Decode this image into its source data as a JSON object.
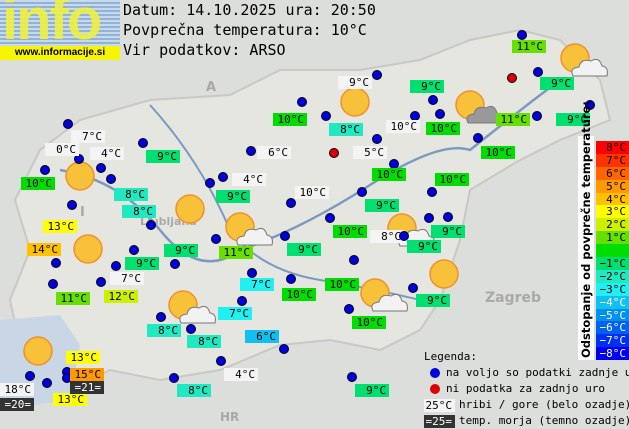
{
  "header": {
    "logo_text": "info",
    "logo_url": "www.informacije.si",
    "date_line": "Datum: 14.10.2025 ura: 20:50",
    "avg_line": "Povprečna temperatura: 10°C",
    "source_line": "Vir podatkov: ARSO"
  },
  "average_temperature": 10,
  "stations": [
    {
      "temp": "11°C",
      "status": "available"
    },
    {
      "temp": "9°C",
      "type": "mountain",
      "status": "available"
    },
    {
      "temp": "9°C",
      "status": "available"
    },
    {
      "temp": "9°C",
      "status": "available"
    },
    {
      "temp": "10°C",
      "status": "available"
    },
    {
      "temp": "8°C",
      "status": "available"
    },
    {
      "temp": "10°C",
      "type": "mountain",
      "status": "available"
    },
    {
      "temp": "10°C",
      "status": "available"
    },
    {
      "temp": "11°C",
      "status": "available"
    },
    {
      "temp": "9°C",
      "status": "available"
    },
    {
      "temp": "10°C",
      "status": "available"
    },
    {
      "temp": "5°C",
      "type": "mountain",
      "status": "available"
    },
    {
      "temp": "10°C",
      "status": "available"
    },
    {
      "temp": "10°C",
      "status": "available"
    },
    {
      "temp": "10°C",
      "type": "mountain",
      "status": "available"
    },
    {
      "temp": "9°C",
      "status": "available"
    },
    {
      "temp": "10°C",
      "status": "available"
    },
    {
      "temp": "8°C",
      "type": "mountain",
      "status": "available"
    },
    {
      "temp": "9°C",
      "status": "available"
    },
    {
      "temp": "9°C",
      "status": "available"
    },
    {
      "temp": "9°C",
      "status": "available"
    },
    {
      "temp": "10°C",
      "status": "available"
    },
    {
      "temp": "10°C",
      "status": "available"
    },
    {
      "temp": "10°C",
      "status": "available"
    },
    {
      "temp": "9°C",
      "status": "available"
    },
    {
      "temp": "7°C",
      "status": "available"
    },
    {
      "temp": "7°C",
      "status": "available"
    },
    {
      "temp": "6°C",
      "status": "available"
    },
    {
      "temp": "8°C",
      "status": "available"
    },
    {
      "temp": "8°C",
      "status": "available"
    },
    {
      "temp": "4°C",
      "type": "mountain",
      "status": "available"
    },
    {
      "temp": "8°C",
      "status": "available"
    },
    {
      "temp": "9°C",
      "status": "available"
    },
    {
      "temp": "7°C",
      "type": "mountain",
      "status": "available"
    },
    {
      "temp": "0°C",
      "type": "mountain",
      "status": "available"
    },
    {
      "temp": "4°C",
      "type": "mountain",
      "status": "available"
    },
    {
      "temp": "10°C",
      "status": "available"
    },
    {
      "temp": "9°C",
      "status": "available"
    },
    {
      "temp": "8°C",
      "status": "available"
    },
    {
      "temp": "8°C",
      "status": "available"
    },
    {
      "temp": "13°C",
      "status": "available"
    },
    {
      "temp": "14°C",
      "status": "available"
    },
    {
      "temp": "11°C",
      "status": "available"
    },
    {
      "temp": "12°C",
      "status": "available"
    },
    {
      "temp": "7°C",
      "type": "mountain",
      "status": "available"
    },
    {
      "temp": "9°C",
      "status": "available"
    },
    {
      "temp": "9°C",
      "status": "available"
    },
    {
      "temp": "11°C",
      "status": "available"
    },
    {
      "temp": "6°C",
      "type": "mountain",
      "status": "available"
    },
    {
      "temp": "4°C",
      "type": "mountain",
      "status": "available"
    },
    {
      "temp": "9°C",
      "status": "available"
    },
    {
      "temp": "13°C",
      "status": "available"
    },
    {
      "temp": "15°C",
      "status": "available"
    },
    {
      "temp": "18°C",
      "type": "mountain",
      "status": "available"
    },
    {
      "temp": "13°C",
      "status": "available"
    },
    {
      "temp": "",
      "status": "no-data"
    },
    {
      "temp": "",
      "status": "no-data"
    }
  ],
  "sea_temperatures": [
    "=21=",
    "=20="
  ],
  "weather_icons": [
    "sunny",
    "sunny",
    "sunny",
    "sunny",
    "sunny",
    "sunny",
    "partly-cloudy",
    "cloudy-sun",
    "partly-cloudy",
    "partly-cloudy",
    "partly-cloudy",
    "partly-cloudy"
  ],
  "map_labels": [
    "A",
    "I",
    "HR",
    "Ljubljana",
    "Zagreb"
  ],
  "scale": {
    "title": "Odstopanje od povprečne temperature:",
    "steps": [
      {
        "label": "8°C",
        "color": "#ff0000"
      },
      {
        "label": "7°C",
        "color": "#ff3300"
      },
      {
        "label": "6°C",
        "color": "#ff6600"
      },
      {
        "label": "5°C",
        "color": "#ff9900"
      },
      {
        "label": "4°C",
        "color": "#ffc000"
      },
      {
        "label": "3°C",
        "color": "#ffff00"
      },
      {
        "label": "2°C",
        "color": "#ccf000"
      },
      {
        "label": "1°C",
        "color": "#66e000"
      },
      {
        "label": "",
        "color": "#00dd00"
      },
      {
        "label": "−1°C",
        "color": "#00e070"
      },
      {
        "label": "−2°C",
        "color": "#20e8c0"
      },
      {
        "label": "−3°C",
        "color": "#20f0f0"
      },
      {
        "label": "−4°C",
        "color": "#10c0f0"
      },
      {
        "label": "−5°C",
        "color": "#0090f0"
      },
      {
        "label": "−6°C",
        "color": "#0060f0"
      },
      {
        "label": "−7°C",
        "color": "#0030f0"
      },
      {
        "label": "−8°C",
        "color": "#0000f0"
      }
    ]
  },
  "legend": {
    "title": "Legenda:",
    "available": "na voljo so podatki zadnje ure",
    "missing": "ni podatka za zadnjo uro",
    "mountain_sample": "25°C",
    "mountain": "hribi / gore (belo ozadje)",
    "sea_sample": "=25=",
    "sea": "temp. morja (temno ozadje)"
  }
}
